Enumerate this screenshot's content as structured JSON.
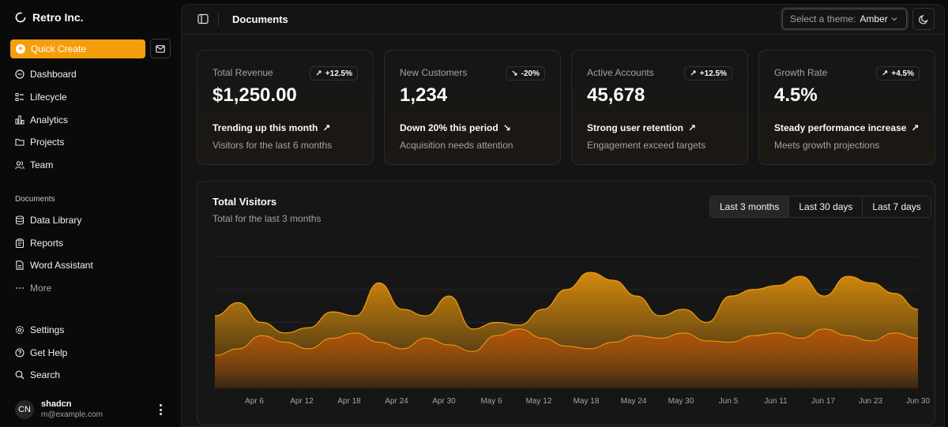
{
  "sidebar": {
    "brand": "Retro Inc.",
    "quick_create": "Quick Create",
    "nav": [
      "Dashboard",
      "Lifecycle",
      "Analytics",
      "Projects",
      "Team"
    ],
    "documents_label": "Documents",
    "documents": [
      "Data Library",
      "Reports",
      "Word Assistant",
      "More"
    ],
    "secondary": [
      "Settings",
      "Get Help",
      "Search"
    ],
    "user": {
      "initials": "CN",
      "name": "shadcn",
      "email": "m@example.com"
    }
  },
  "header": {
    "title": "Documents",
    "theme_label": "Select a theme:",
    "theme_value": "Amber"
  },
  "cards": [
    {
      "label": "Total Revenue",
      "badge": "+12.5%",
      "direction": "up",
      "value": "$1,250.00",
      "trend": "Trending up this month",
      "sub": "Visitors for the last 6 months"
    },
    {
      "label": "New Customers",
      "badge": "-20%",
      "direction": "down",
      "value": "1,234",
      "trend": "Down 20% this period",
      "sub": "Acquisition needs attention"
    },
    {
      "label": "Active Accounts",
      "badge": "+12.5%",
      "direction": "up",
      "value": "45,678",
      "trend": "Strong user retention",
      "sub": "Engagement exceed targets"
    },
    {
      "label": "Growth Rate",
      "badge": "+4.5%",
      "direction": "up",
      "value": "4.5%",
      "trend": "Steady performance increase",
      "sub": "Meets growth projections"
    }
  ],
  "chart": {
    "title": "Total Visitors",
    "subtitle": "Total for the last 3 months",
    "ranges": [
      "Last 3 months",
      "Last 30 days",
      "Last 7 days"
    ],
    "active_range": "Last 3 months"
  },
  "chart_data": {
    "type": "area",
    "x_ticks": [
      "Apr 6",
      "Apr 12",
      "Apr 18",
      "Apr 24",
      "Apr 30",
      "May 6",
      "May 12",
      "May 18",
      "May 24",
      "May 30",
      "Jun 5",
      "Jun 11",
      "Jun 17",
      "Jun 23",
      "Jun 30"
    ],
    "grid": true,
    "stacked": true,
    "colors": {
      "primary": "#f59e0b",
      "secondary": "#b45309"
    },
    "series": [
      {
        "values": [
          0.55,
          0.65,
          0.5,
          0.42,
          0.46,
          0.58,
          0.55,
          0.8,
          0.6,
          0.55,
          0.7,
          0.45,
          0.5,
          0.48,
          0.6,
          0.75,
          0.88,
          0.82,
          0.7,
          0.55,
          0.6,
          0.5,
          0.7,
          0.75,
          0.78,
          0.85,
          0.7,
          0.85,
          0.8,
          0.72,
          0.6
        ]
      },
      {
        "values": [
          0.25,
          0.3,
          0.4,
          0.35,
          0.3,
          0.38,
          0.42,
          0.35,
          0.3,
          0.38,
          0.33,
          0.28,
          0.4,
          0.45,
          0.38,
          0.32,
          0.3,
          0.35,
          0.4,
          0.38,
          0.42,
          0.36,
          0.35,
          0.4,
          0.42,
          0.38,
          0.45,
          0.4,
          0.36,
          0.42,
          0.38
        ]
      }
    ]
  }
}
